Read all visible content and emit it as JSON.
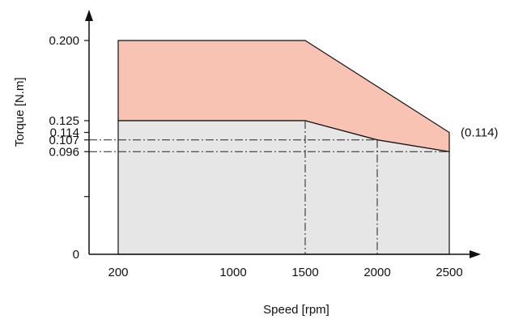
{
  "chart_data": {
    "type": "area",
    "xlabel": "Speed [rpm]",
    "ylabel": "Torque [N.m]",
    "x_ticks": [
      200,
      1000,
      1500,
      2000,
      2500
    ],
    "y_ticks": [
      "0",
      "0.096",
      "0.107",
      "0.114",
      "0.125",
      "0.200"
    ],
    "series": [
      {
        "x": [
          200,
          1500,
          2000,
          2500
        ],
        "y": [
          0.125,
          0.125,
          0.107,
          0.096
        ],
        "color": "#e6e6e6"
      },
      {
        "x": [
          200,
          1500,
          2500
        ],
        "y": [
          0.2,
          0.2,
          0.114
        ],
        "color": "#f8c3b3"
      }
    ],
    "annotations": [
      {
        "text": "(0.114)",
        "x": 2500,
        "y": 0.114
      }
    ],
    "reference_lines": {
      "vertical": [
        {
          "x": 1500,
          "y_top": 0.125
        },
        {
          "x": 2000,
          "y_top": 0.107
        }
      ],
      "horizontal": [
        {
          "y": 0.107,
          "x_end": 2000
        },
        {
          "y": 0.096,
          "x_end": 2500
        }
      ]
    }
  }
}
